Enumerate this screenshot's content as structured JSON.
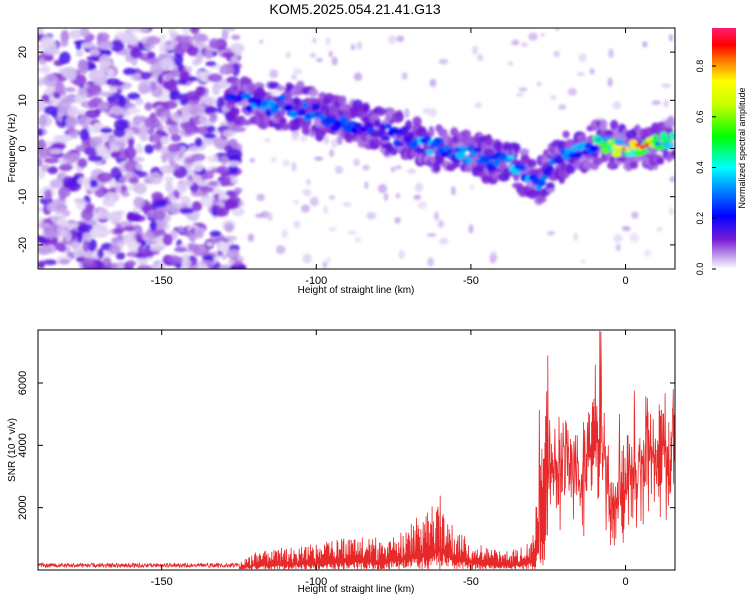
{
  "figure": {
    "title": "KOM5.2025.054.21.41.G13"
  },
  "chart_data": [
    {
      "type": "heatmap",
      "xlabel": "Height of straight line (km)",
      "ylabel": "Frequency (Hz)",
      "xlim": [
        -190,
        16
      ],
      "ylim": [
        -25,
        25
      ],
      "x_ticks": [
        -150,
        -100,
        -50,
        0
      ],
      "x_tick_labels": [
        "-150",
        "-100",
        "-50",
        "0"
      ],
      "y_ticks": [
        -20,
        -10,
        0,
        10,
        20
      ],
      "y_tick_labels": [
        "-20",
        "-10",
        "0",
        "10",
        "20"
      ],
      "colorbar": {
        "label": "Normalized spectral amplitude",
        "range": [
          0,
          0.95
        ],
        "ticks": [
          0.0,
          0.2,
          0.4,
          0.6,
          0.8
        ],
        "tick_labels": [
          "0.0",
          "0.2",
          "0.4",
          "0.6",
          "0.8"
        ]
      },
      "ridge": {
        "x": [
          -128,
          -115,
          -105,
          -95,
          -85,
          -80,
          -75,
          -65,
          -55,
          -45,
          -38,
          -32,
          -28,
          -25,
          -20,
          -10,
          0,
          5,
          10,
          16
        ],
        "y": [
          10,
          9,
          8.5,
          6,
          5,
          4,
          3,
          1,
          -1,
          -2,
          -3,
          -5,
          -7,
          -5,
          -1,
          1,
          0.5,
          0.5,
          1,
          2.5
        ],
        "amplitude": [
          0.3,
          0.35,
          0.3,
          0.3,
          0.25,
          0.25,
          0.3,
          0.35,
          0.35,
          0.3,
          0.35,
          0.4,
          0.35,
          0.3,
          0.3,
          0.45,
          0.8,
          0.9,
          0.6,
          0.5
        ]
      },
      "noise_region_x": [
        -190,
        -125
      ]
    },
    {
      "type": "line",
      "xlabel": "Height of straight line (km)",
      "ylabel": "SNR (10 * v/v)",
      "xlim": [
        -190,
        16
      ],
      "ylim": [
        0,
        7700
      ],
      "x_ticks": [
        -150,
        -100,
        -50,
        0
      ],
      "x_tick_labels": [
        "-150",
        "-100",
        "-50",
        "0"
      ],
      "y_ticks": [
        2000,
        4000,
        6000
      ],
      "y_tick_labels": [
        "2000",
        "4000",
        "6000"
      ],
      "color": "#e8292a",
      "envelope": {
        "x": [
          -190,
          -125,
          -120,
          -110,
          -100,
          -90,
          -80,
          -72,
          -65,
          -60,
          -55,
          -50,
          -45,
          -40,
          -33,
          -30,
          -28,
          -25,
          -20,
          -15,
          -10,
          -8,
          -5,
          0,
          5,
          10,
          14,
          16
        ],
        "y": [
          200,
          200,
          550,
          700,
          800,
          1000,
          1000,
          1300,
          1800,
          2300,
          1200,
          950,
          700,
          600,
          700,
          1200,
          3800,
          5100,
          4700,
          4200,
          5500,
          6400,
          3000,
          4000,
          5300,
          5400,
          4700,
          6200
        ]
      }
    }
  ]
}
